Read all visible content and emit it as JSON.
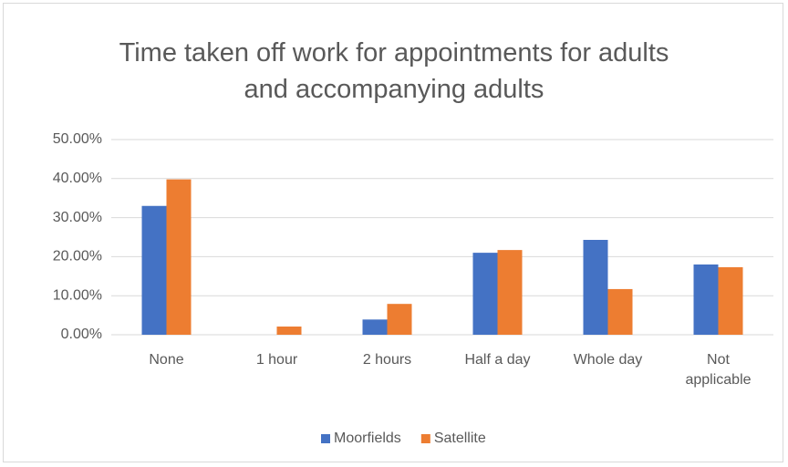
{
  "chart_data": {
    "type": "bar",
    "title": "Time taken off work for appointments for adults and accompanying adults",
    "categories": [
      "None",
      "1 hour",
      "2 hours",
      "Half a day",
      "Whole day",
      "Not applicable"
    ],
    "series": [
      {
        "name": "Moorfields",
        "color": "#4472c4",
        "values": [
          33.0,
          0,
          3.9,
          21.0,
          24.3,
          18.0
        ]
      },
      {
        "name": "Satellite",
        "color": "#ed7d31",
        "values": [
          39.8,
          2.1,
          7.9,
          21.7,
          11.7,
          17.3
        ]
      }
    ],
    "ylim": [
      0,
      50
    ],
    "yticks": [
      {
        "value": 0,
        "label": "0.00%"
      },
      {
        "value": 10,
        "label": "10.00%"
      },
      {
        "value": 20,
        "label": "20.00%"
      },
      {
        "value": 30,
        "label": "30.00%"
      },
      {
        "value": 40,
        "label": "40.00%"
      },
      {
        "value": 50,
        "label": "50.00%"
      }
    ],
    "grid": true,
    "legend": "bottom"
  }
}
